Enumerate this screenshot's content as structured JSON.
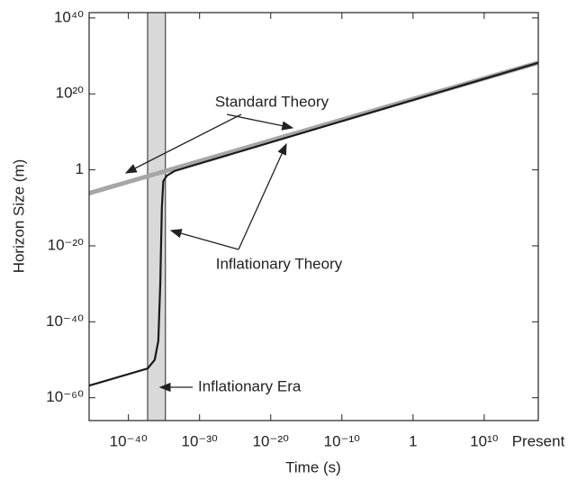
{
  "chart_data": {
    "type": "line",
    "x_label": "Time (s)",
    "y_label": "Horizon Size (m)",
    "log_x": true,
    "log_y": true,
    "xlim": [
      3e-46,
      4e+17
    ],
    "ylim": [
      1e-66,
      2.5e+41
    ],
    "xticks": [
      {
        "value": 1e-40,
        "label": "10⁻⁴⁰"
      },
      {
        "value": 1e-30,
        "label": "10⁻³⁰"
      },
      {
        "value": 1e-20,
        "label": "10⁻²⁰"
      },
      {
        "value": 1e-10,
        "label": "10⁻¹⁰"
      },
      1,
      {
        "value": 10000000000.0,
        "label": "10¹⁰"
      },
      {
        "value": 4e+17,
        "label": "Present"
      }
    ],
    "yticks": [
      {
        "value": 1e-60,
        "label": "10⁻⁶⁰"
      },
      {
        "value": 1e-40,
        "label": "10⁻⁴⁰"
      },
      {
        "value": 1e-20,
        "label": "10⁻²⁰"
      },
      1,
      {
        "value": 1e+20,
        "label": "10²⁰"
      },
      {
        "value": 1e+40,
        "label": "10⁴⁰"
      }
    ],
    "shaded_region": {
      "x": [
        5e-38,
        1.6e-35
      ],
      "color": "#d9d9d9",
      "label": "Inflationary Era"
    },
    "series": [
      {
        "name": "Standard Theory",
        "color": "#a6a6a6",
        "x": [
          3e-46,
          4e+17
        ],
        "values": [
          7e-07,
          1.6e+28
        ]
      },
      {
        "name": "Inflationary Theory",
        "color": "#1a1a1a",
        "x": [
          3e-46,
          5e-38,
          5e-37,
          1.6e-36,
          3e-36,
          5e-36,
          8e-36,
          2.5e-35,
          3e-34,
          4e+17
        ],
        "values": [
          1.6e-57,
          5e-53,
          1e-50,
          1e-45,
          1e-30,
          1e-10,
          0.001,
          0.03,
          0.5,
          1.6e+28
        ]
      }
    ]
  }
}
